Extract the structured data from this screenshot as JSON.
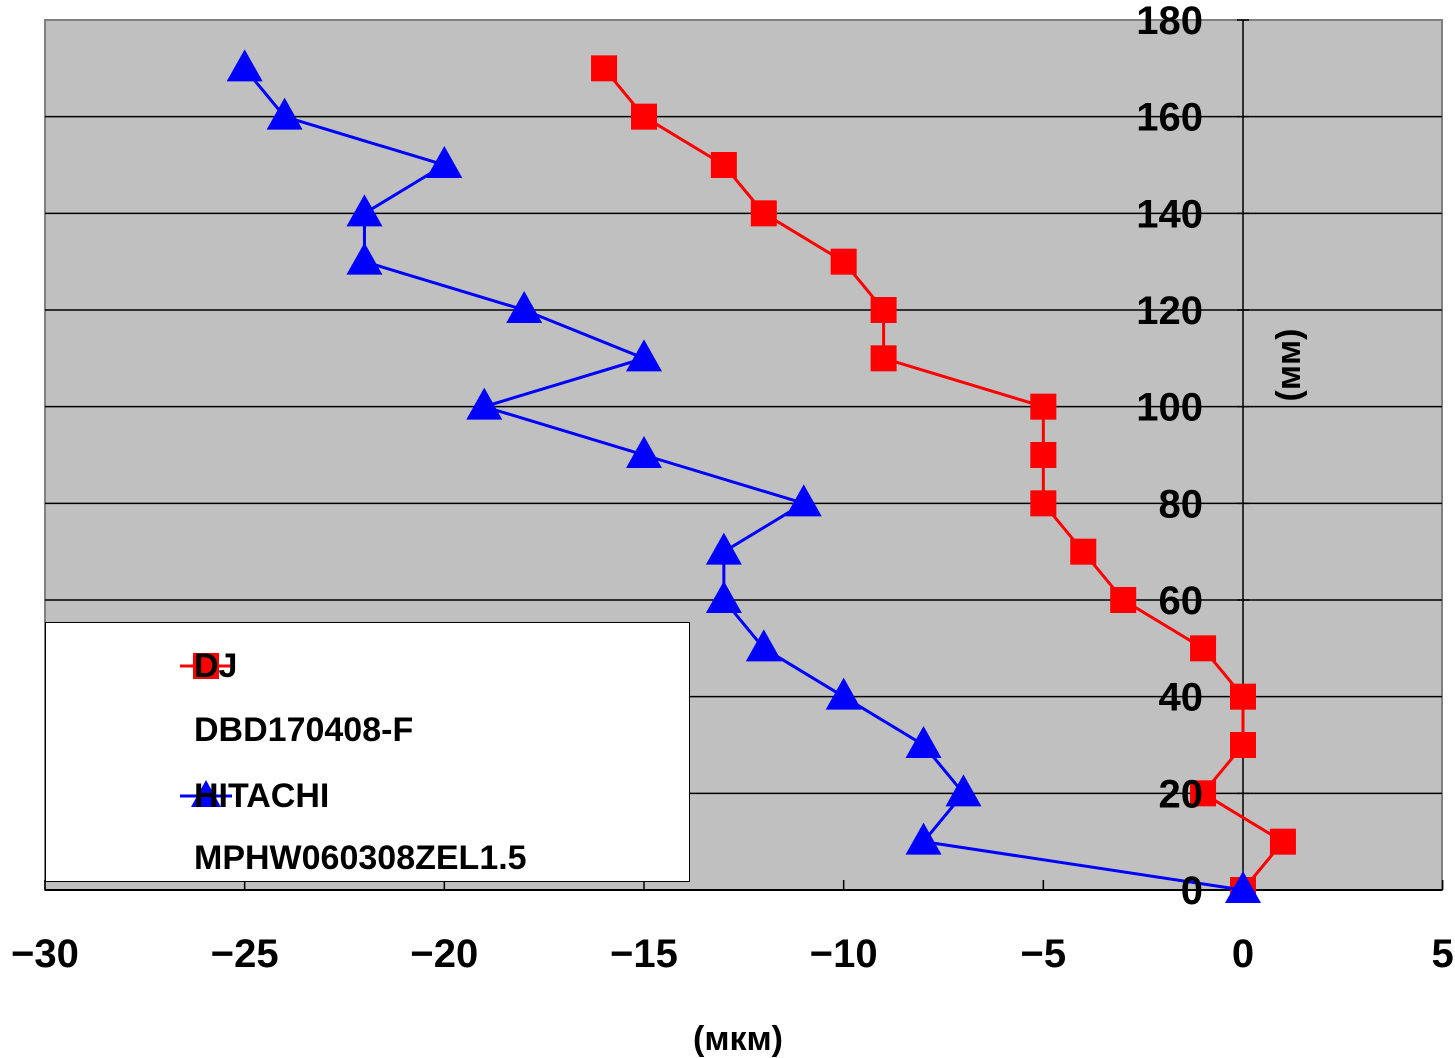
{
  "chart_data": {
    "type": "line",
    "xlabel": "(мкм)",
    "ylabel": "(мм)",
    "xlim": [
      -30,
      5
    ],
    "ylim": [
      0,
      180
    ],
    "x_ticks": [
      "-30",
      "-25",
      "-20",
      "-15",
      "-10",
      "-5",
      "0",
      "5"
    ],
    "y_ticks": [
      "0",
      "20",
      "40",
      "60",
      "80",
      "100",
      "120",
      "140",
      "160",
      "180"
    ],
    "grid": "horizontal",
    "background": "#c0c0c0",
    "legend_position": "bottom-left",
    "series": [
      {
        "name": "DJ",
        "name_line2": "DBD170408-F",
        "color": "#ff0000",
        "marker": "square",
        "points": [
          [
            0,
            0
          ],
          [
            1,
            10
          ],
          [
            -1,
            20
          ],
          [
            0,
            30
          ],
          [
            0,
            40
          ],
          [
            -1,
            50
          ],
          [
            -3,
            60
          ],
          [
            -4,
            70
          ],
          [
            -5,
            80
          ],
          [
            -5,
            90
          ],
          [
            -5,
            100
          ],
          [
            -9,
            110
          ],
          [
            -9,
            120
          ],
          [
            -10,
            130
          ],
          [
            -12,
            140
          ],
          [
            -13,
            150
          ],
          [
            -15,
            160
          ],
          [
            -16,
            170
          ]
        ]
      },
      {
        "name": "HITACHI",
        "name_line2": "MPHW060308ZEL1.5",
        "color": "#0000ff",
        "marker": "triangle",
        "points": [
          [
            0,
            0
          ],
          [
            -8,
            10
          ],
          [
            -7,
            20
          ],
          [
            -8,
            30
          ],
          [
            -10,
            40
          ],
          [
            -12,
            50
          ],
          [
            -13,
            60
          ],
          [
            -13,
            70
          ],
          [
            -11,
            80
          ],
          [
            -15,
            90
          ],
          [
            -19,
            100
          ],
          [
            -15,
            110
          ],
          [
            -18,
            120
          ],
          [
            -22,
            130
          ],
          [
            -22,
            140
          ],
          [
            -20,
            150
          ],
          [
            -24,
            160
          ],
          [
            -25,
            170
          ]
        ]
      }
    ]
  }
}
